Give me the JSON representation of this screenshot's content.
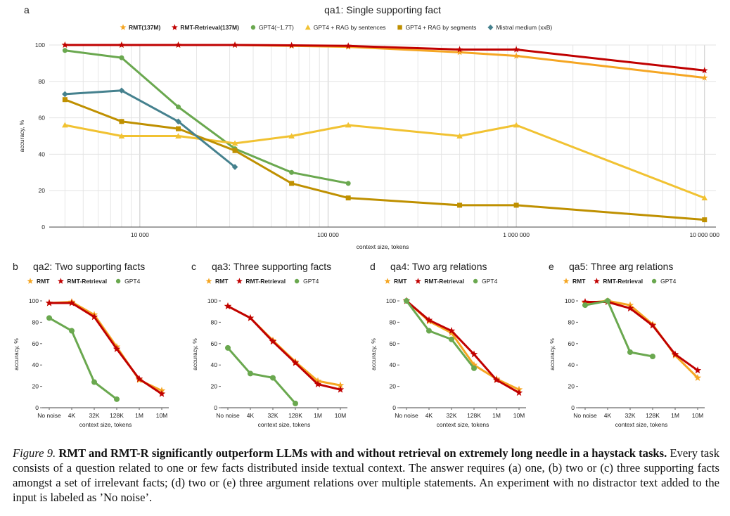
{
  "caption": {
    "label": "Figure 9.",
    "title": "RMT and RMT-R significantly outperform LLMs with and without retrieval on extremely long needle in a haystack tasks.",
    "body": "Every task consists of a question related to one or few facts distributed inside textual context. The answer requires (a) one, (b) two or (c) three supporting facts amongst a set of irrelevant facts; (d) two or (e) three argument relations over multiple statements. An experiment with no distractor text added to the input is labeled as ’No noise’."
  },
  "colors": {
    "RMT": "#f5a623",
    "RMT-Retrieval": "#c00000",
    "GPT4": "#6aa84f",
    "GPT4 + RAG by sentences": "#f1c232",
    "GPT4 + RAG by segments": "#bf9000",
    "Mistral medium": "#45818e"
  },
  "chart_data": [
    {
      "panel": "a",
      "type": "line",
      "title": "qa1: Single supporting fact",
      "xlabel": "context size, tokens",
      "ylabel": "accuracy, %",
      "x_scale": "log",
      "xlim": [
        3300,
        11500000
      ],
      "ylim": [
        0,
        100
      ],
      "yticks": [
        0,
        20,
        40,
        60,
        80,
        100
      ],
      "xticks": [
        10000,
        100000,
        1000000,
        10000000
      ],
      "xtick_labels": [
        "10 000",
        "100 000",
        "1 000 000",
        "10 000 000"
      ],
      "grid": true,
      "legend": "top",
      "series": [
        {
          "name": "RMT(137M)",
          "color_key": "RMT",
          "marker": "star",
          "bold": true,
          "x": [
            4000,
            8000,
            16000,
            32000,
            64000,
            128000,
            500000,
            1000000,
            10000000
          ],
          "y": [
            100,
            100,
            100,
            100,
            99.5,
            99,
            96,
            94,
            82
          ]
        },
        {
          "name": "RMT-Retrieval(137M)",
          "color_key": "RMT-Retrieval",
          "marker": "star",
          "bold": true,
          "x": [
            4000,
            8000,
            16000,
            32000,
            64000,
            128000,
            500000,
            1000000,
            10000000
          ],
          "y": [
            100,
            100,
            100,
            100,
            99.8,
            99.5,
            97.5,
            97.5,
            86
          ]
        },
        {
          "name": "GPT4(~1.7T)",
          "color_key": "GPT4",
          "marker": "circle",
          "x": [
            4000,
            8000,
            16000,
            32000,
            64000,
            128000
          ],
          "y": [
            97,
            93,
            66,
            43,
            30,
            24
          ]
        },
        {
          "name": "GPT4 + RAG by sentences",
          "color_key": "GPT4 + RAG by sentences",
          "marker": "triangle",
          "x": [
            4000,
            8000,
            16000,
            32000,
            64000,
            128000,
            500000,
            1000000,
            10000000
          ],
          "y": [
            56,
            50,
            50,
            46,
            50,
            56,
            50,
            56,
            16
          ]
        },
        {
          "name": "GPT4 + RAG by segments",
          "color_key": "GPT4 + RAG by segments",
          "marker": "square",
          "x": [
            4000,
            8000,
            16000,
            32000,
            64000,
            128000,
            500000,
            1000000,
            10000000
          ],
          "y": [
            70,
            58,
            54,
            42,
            24,
            16,
            12,
            12,
            4
          ]
        },
        {
          "name": "Mistral medium (xxB)",
          "color_key": "Mistral medium",
          "marker": "diamond",
          "x": [
            4000,
            8000,
            16000,
            32000
          ],
          "y": [
            73,
            75,
            58,
            33
          ]
        }
      ]
    },
    {
      "panel": "b",
      "type": "line",
      "title": "qa2: Two supporting facts",
      "xlabel": "context size, tokens",
      "ylabel": "accuracy, %",
      "categories": [
        "No noise",
        "4K",
        "32K",
        "128K",
        "1M",
        "10M"
      ],
      "ylim": [
        0,
        100
      ],
      "yticks": [
        0,
        20,
        40,
        60,
        80,
        100
      ],
      "legend": "top",
      "series": [
        {
          "name": "RMT",
          "color_key": "RMT",
          "marker": "star",
          "values": [
            98,
            99,
            87,
            57,
            26,
            16
          ]
        },
        {
          "name": "RMT-Retrieval",
          "color_key": "RMT-Retrieval",
          "marker": "star",
          "values": [
            98,
            98,
            85,
            55,
            27,
            13
          ]
        },
        {
          "name": "GPT4",
          "color_key": "GPT4",
          "marker": "circle",
          "values": [
            84,
            72,
            24,
            8,
            null,
            null
          ]
        }
      ]
    },
    {
      "panel": "c",
      "type": "line",
      "title": "qa3: Three supporting facts",
      "xlabel": "context size, tokens",
      "ylabel": "accuracy, %",
      "categories": [
        "No noise",
        "4K",
        "32K",
        "128K",
        "1M",
        "10M"
      ],
      "ylim": [
        0,
        100
      ],
      "yticks": [
        0,
        20,
        40,
        60,
        80,
        100
      ],
      "legend": "top",
      "series": [
        {
          "name": "RMT",
          "color_key": "RMT",
          "marker": "star",
          "values": [
            95,
            84,
            63,
            43,
            25,
            21
          ]
        },
        {
          "name": "RMT-Retrieval",
          "color_key": "RMT-Retrieval",
          "marker": "star",
          "values": [
            95,
            84,
            62,
            42,
            22,
            17
          ]
        },
        {
          "name": "GPT4",
          "color_key": "GPT4",
          "marker": "circle",
          "values": [
            56,
            32,
            28,
            4,
            null,
            null
          ]
        }
      ]
    },
    {
      "panel": "d",
      "type": "line",
      "title": "qa4: Two arg relations",
      "xlabel": "context size, tokens",
      "ylabel": "accuracy, %",
      "categories": [
        "No noise",
        "4K",
        "32K",
        "128K",
        "1M",
        "10M"
      ],
      "ylim": [
        0,
        100
      ],
      "yticks": [
        0,
        20,
        40,
        60,
        80,
        100
      ],
      "legend": "top",
      "series": [
        {
          "name": "RMT",
          "color_key": "RMT",
          "marker": "star",
          "values": [
            100,
            81,
            70,
            40,
            27,
            17
          ]
        },
        {
          "name": "RMT-Retrieval",
          "color_key": "RMT-Retrieval",
          "marker": "star",
          "values": [
            100,
            82,
            72,
            50,
            26,
            14
          ]
        },
        {
          "name": "GPT4",
          "color_key": "GPT4",
          "marker": "circle",
          "values": [
            100,
            72,
            64,
            37,
            null,
            null
          ]
        }
      ]
    },
    {
      "panel": "e",
      "type": "line",
      "title": "qa5: Three arg relations",
      "xlabel": "context size, tokens",
      "ylabel": "accuracy, %",
      "categories": [
        "No noise",
        "4K",
        "32K",
        "128K",
        "1M",
        "10M"
      ],
      "ylim": [
        0,
        100
      ],
      "yticks": [
        0,
        20,
        40,
        60,
        80,
        100
      ],
      "legend": "top",
      "series": [
        {
          "name": "RMT",
          "color_key": "RMT",
          "marker": "star",
          "values": [
            98,
            100,
            96,
            78,
            49,
            28
          ]
        },
        {
          "name": "RMT-Retrieval",
          "color_key": "RMT-Retrieval",
          "marker": "star",
          "values": [
            99,
            99,
            93,
            77,
            50,
            35
          ]
        },
        {
          "name": "GPT4",
          "color_key": "GPT4",
          "marker": "circle",
          "values": [
            96,
            100,
            52,
            48,
            null,
            null
          ]
        }
      ]
    }
  ]
}
